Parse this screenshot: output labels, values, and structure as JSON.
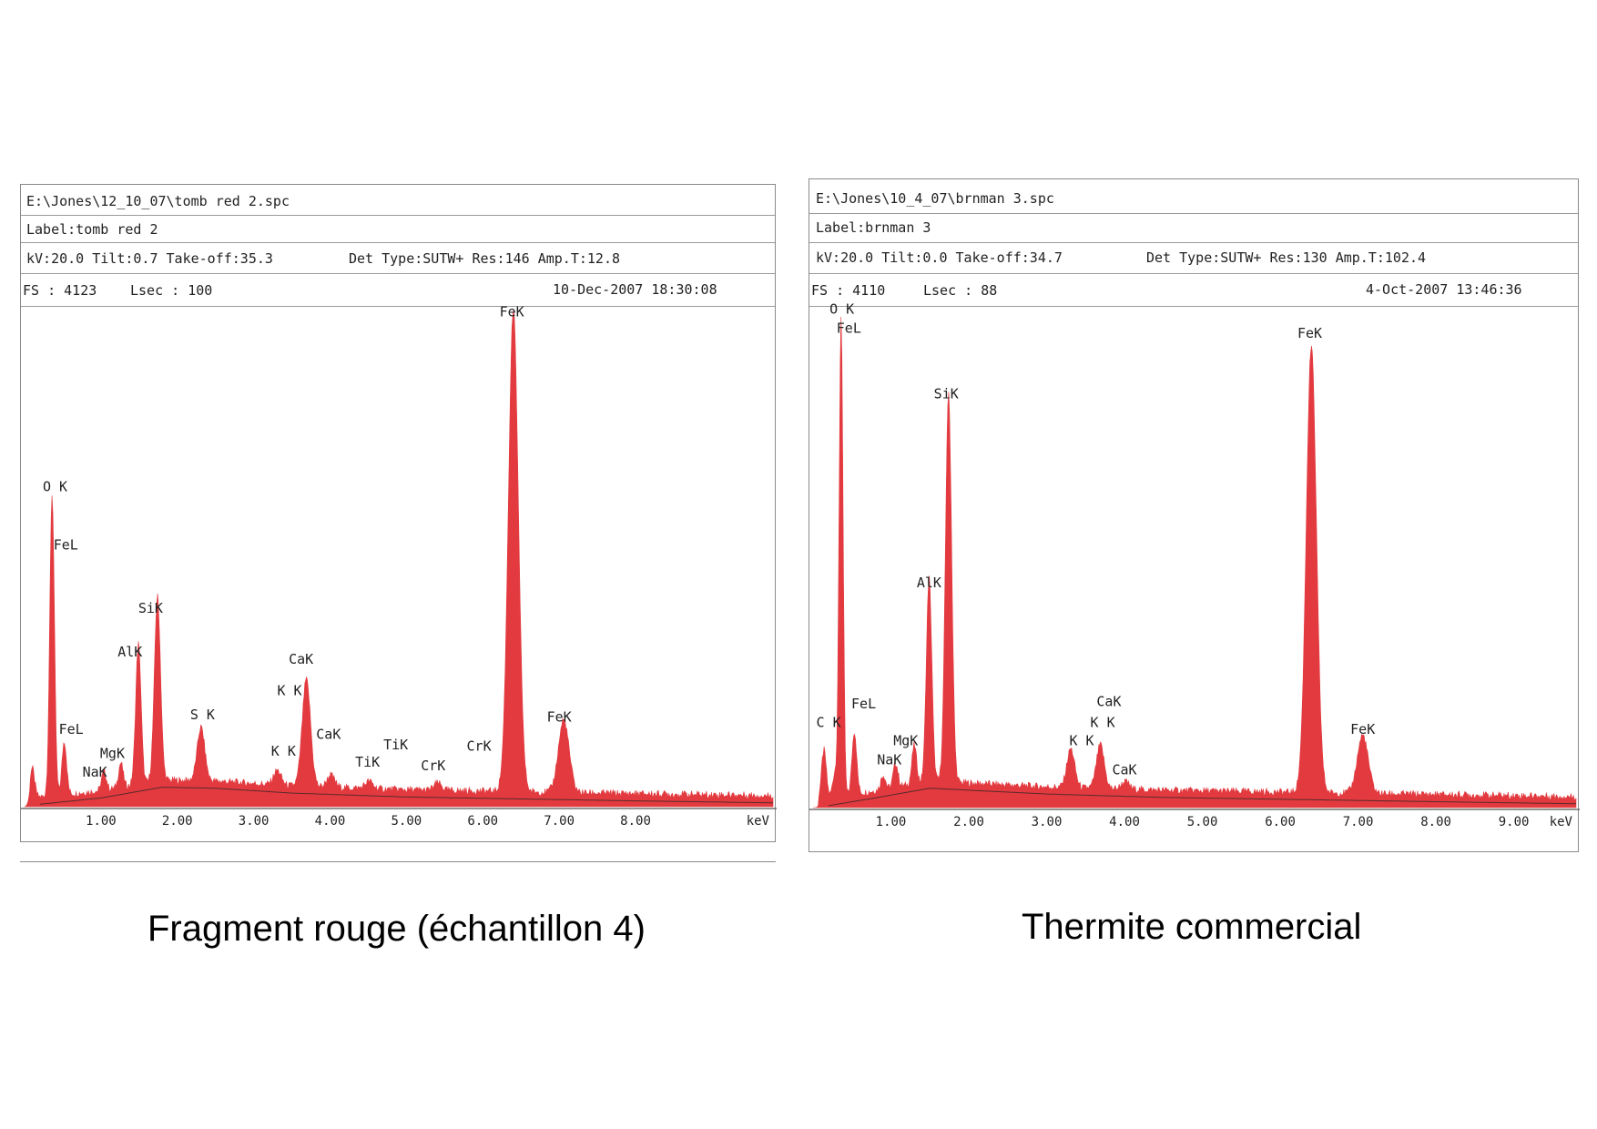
{
  "chart_data": [
    {
      "type": "area",
      "header": {
        "file": "E:\\Jones\\12_10_07\\tomb red 2.spc",
        "label": "Label:tomb red 2",
        "params_left": "kV:20.0 Tilt:0.7 Take-off:35.3",
        "params_right": "Det Type:SUTW+ Res:146 Amp.T:12.8",
        "fs": "FS : 4123",
        "lsec": "Lsec : 100",
        "datetime": "10-Dec-2007 18:30:08"
      },
      "xlabel": "keV",
      "xlim": [
        0,
        9.8
      ],
      "ylim": [
        0,
        100
      ],
      "xticks": [
        "1.00",
        "2.00",
        "3.00",
        "4.00",
        "5.00",
        "6.00",
        "7.00",
        "8.00"
      ],
      "color": "#e23a3f",
      "peaks": [
        {
          "x": 0.1,
          "y": 6,
          "w": 0.03
        },
        {
          "x": 0.36,
          "y": 62,
          "w": 0.03
        },
        {
          "x": 0.52,
          "y": 11,
          "w": 0.03
        },
        {
          "x": 1.04,
          "y": 4,
          "w": 0.03
        },
        {
          "x": 1.26,
          "y": 5,
          "w": 0.03
        },
        {
          "x": 1.49,
          "y": 29,
          "w": 0.035
        },
        {
          "x": 1.74,
          "y": 38,
          "w": 0.04
        },
        {
          "x": 2.31,
          "y": 11,
          "w": 0.05
        },
        {
          "x": 3.31,
          "y": 3,
          "w": 0.05
        },
        {
          "x": 3.69,
          "y": 22,
          "w": 0.055
        },
        {
          "x": 4.01,
          "y": 2.5,
          "w": 0.05
        },
        {
          "x": 4.51,
          "y": 1.5,
          "w": 0.05
        },
        {
          "x": 5.41,
          "y": 1.5,
          "w": 0.05
        },
        {
          "x": 6.4,
          "y": 99,
          "w": 0.065
        },
        {
          "x": 7.06,
          "y": 15,
          "w": 0.07
        }
      ],
      "baseline": 1.5,
      "bremsstrahlung": [
        [
          0.2,
          0.5
        ],
        [
          1.0,
          1.8
        ],
        [
          1.8,
          4.0
        ],
        [
          2.5,
          3.8
        ],
        [
          3.5,
          2.8
        ],
        [
          5.0,
          2.0
        ],
        [
          6.5,
          1.6
        ],
        [
          8.0,
          1.2
        ],
        [
          9.8,
          0.8
        ]
      ],
      "annotations": [
        {
          "text": "FeK",
          "x": 6.38,
          "y": 101
        },
        {
          "text": "O K",
          "x": 0.4,
          "y": 65
        },
        {
          "text": "FeL",
          "x": 0.54,
          "y": 53
        },
        {
          "text": "SiK",
          "x": 1.65,
          "y": 40
        },
        {
          "text": "AlK",
          "x": 1.38,
          "y": 31
        },
        {
          "text": "CaK",
          "x": 3.62,
          "y": 29.5
        },
        {
          "text": "K K",
          "x": 3.47,
          "y": 23
        },
        {
          "text": "S K",
          "x": 2.33,
          "y": 18
        },
        {
          "text": "FeK",
          "x": 7.0,
          "y": 17.5
        },
        {
          "text": "FeL",
          "x": 0.61,
          "y": 15
        },
        {
          "text": "CaK",
          "x": 3.98,
          "y": 14
        },
        {
          "text": "TiK",
          "x": 4.86,
          "y": 11.8
        },
        {
          "text": "CrK",
          "x": 5.95,
          "y": 11.5
        },
        {
          "text": "MgK",
          "x": 1.15,
          "y": 10
        },
        {
          "text": "K K",
          "x": 3.39,
          "y": 10.5
        },
        {
          "text": "TiK",
          "x": 4.49,
          "y": 8.3
        },
        {
          "text": "CrK",
          "x": 5.35,
          "y": 7.5
        },
        {
          "text": "NaK",
          "x": 0.92,
          "y": 6.2
        }
      ]
    },
    {
      "type": "area",
      "header": {
        "file": "E:\\Jones\\10_4_07\\brnman 3.spc",
        "label": "Label:brnman 3",
        "params_left": "kV:20.0 Tilt:0.0 Take-off:34.7",
        "params_right": "Det Type:SUTW+ Res:130 Amp.T:102.4",
        "fs": "FS : 4110",
        "lsec": "Lsec : 88",
        "datetime": "4-Oct-2007 13:46:36"
      },
      "xlabel": "keV",
      "xlim": [
        0,
        9.8
      ],
      "ylim": [
        0,
        100
      ],
      "xticks": [
        "1.00",
        "2.00",
        "3.00",
        "4.00",
        "5.00",
        "6.00",
        "7.00",
        "8.00",
        "9.00"
      ],
      "color": "#e23a3f",
      "peaks": [
        {
          "x": 0.14,
          "y": 10,
          "w": 0.03
        },
        {
          "x": 0.28,
          "y": 5,
          "w": 0.03
        },
        {
          "x": 0.36,
          "y": 99,
          "w": 0.025
        },
        {
          "x": 0.53,
          "y": 13,
          "w": 0.03
        },
        {
          "x": 0.9,
          "y": 3,
          "w": 0.03
        },
        {
          "x": 1.06,
          "y": 5,
          "w": 0.03
        },
        {
          "x": 1.3,
          "y": 8,
          "w": 0.03
        },
        {
          "x": 1.49,
          "y": 42,
          "w": 0.035
        },
        {
          "x": 1.74,
          "y": 80,
          "w": 0.04
        },
        {
          "x": 3.31,
          "y": 8,
          "w": 0.05
        },
        {
          "x": 3.69,
          "y": 9,
          "w": 0.05
        },
        {
          "x": 4.01,
          "y": 1.5,
          "w": 0.05
        },
        {
          "x": 6.4,
          "y": 92,
          "w": 0.065
        },
        {
          "x": 7.06,
          "y": 12,
          "w": 0.07
        }
      ],
      "baseline": 1.5,
      "bremsstrahlung": [
        [
          0.2,
          0.4
        ],
        [
          0.8,
          2.0
        ],
        [
          1.5,
          4.0
        ],
        [
          2.0,
          3.6
        ],
        [
          3.0,
          2.8
        ],
        [
          4.5,
          2.1
        ],
        [
          6.5,
          1.6
        ],
        [
          8.5,
          1.1
        ],
        [
          9.8,
          0.8
        ]
      ],
      "annotations": [
        {
          "text": "O K",
          "x": 0.37,
          "y": 102
        },
        {
          "text": "FeL",
          "x": 0.46,
          "y": 98
        },
        {
          "text": "FeK",
          "x": 6.38,
          "y": 97
        },
        {
          "text": "SiK",
          "x": 1.71,
          "y": 84.5
        },
        {
          "text": "AlK",
          "x": 1.49,
          "y": 45.5
        },
        {
          "text": "FeL",
          "x": 0.65,
          "y": 20.5
        },
        {
          "text": "C K",
          "x": 0.2,
          "y": 16.6
        },
        {
          "text": "CaK",
          "x": 3.8,
          "y": 21
        },
        {
          "text": "K K",
          "x": 3.72,
          "y": 16.6
        },
        {
          "text": "FeK",
          "x": 7.06,
          "y": 15.2
        },
        {
          "text": "MgK",
          "x": 1.19,
          "y": 12.9
        },
        {
          "text": "K K",
          "x": 3.45,
          "y": 12.9
        },
        {
          "text": "NaK",
          "x": 0.98,
          "y": 8.9
        },
        {
          "text": "CaK",
          "x": 4.0,
          "y": 6.9
        }
      ]
    }
  ],
  "captions": {
    "left": "Fragment rouge (échantillon 4)",
    "right": "Thermite commercial"
  }
}
